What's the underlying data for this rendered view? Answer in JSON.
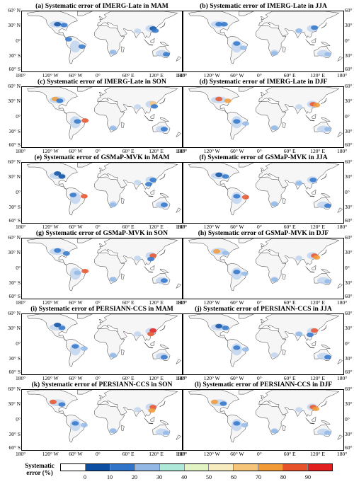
{
  "panels": [
    {
      "title": "(a) Systematic error of IMERG-Late in MAM"
    },
    {
      "title": "(b) Systematic error of IMERG-Late in JJA"
    },
    {
      "title": "(c) Systematic error of IMERG-Late in SON"
    },
    {
      "title": "(d) Systematic error of IMERG-Late in DJF"
    },
    {
      "title": "(e) Systematic error of GSMaP-MVK in MAM"
    },
    {
      "title": "(f) Systematic error of GSMaP-MVK in JJA"
    },
    {
      "title": "(g) Systematic error of GSMaP-MVK in SON"
    },
    {
      "title": "(h) Systematic error of GSMaP-MVK in DJF"
    },
    {
      "title": "(i) Systematic error of PERSIANN-CCS in MAM"
    },
    {
      "title": "(j) Systematic error of PERSIANN-CCS in JJA"
    },
    {
      "title": "(k) Systematic error of PERSIANN-CCS in SON"
    },
    {
      "title": "(l) Systematic error of PERSIANN-CCS in DJF"
    }
  ],
  "lat_labels": [
    "60° N",
    "30° N",
    "0°",
    "30° S",
    "60° S"
  ],
  "lon_labels": [
    "180°",
    "120° W",
    "60° W",
    "0°",
    "60° E",
    "120° E",
    "180°"
  ],
  "legend": {
    "title_line1": "Systematic",
    "title_line2": "error (%)",
    "ticks": [
      "0",
      "10",
      "20",
      "30",
      "40",
      "50",
      "60",
      "70",
      "80",
      "90"
    ],
    "colors": [
      "#ffffff",
      "#0b4ea2",
      "#2f74c9",
      "#93b8e6",
      "#aee8d8",
      "#e3f4c4",
      "#f7ecbf",
      "#f7c57a",
      "#f29a36",
      "#e8522a",
      "#e21f1f"
    ]
  }
}
